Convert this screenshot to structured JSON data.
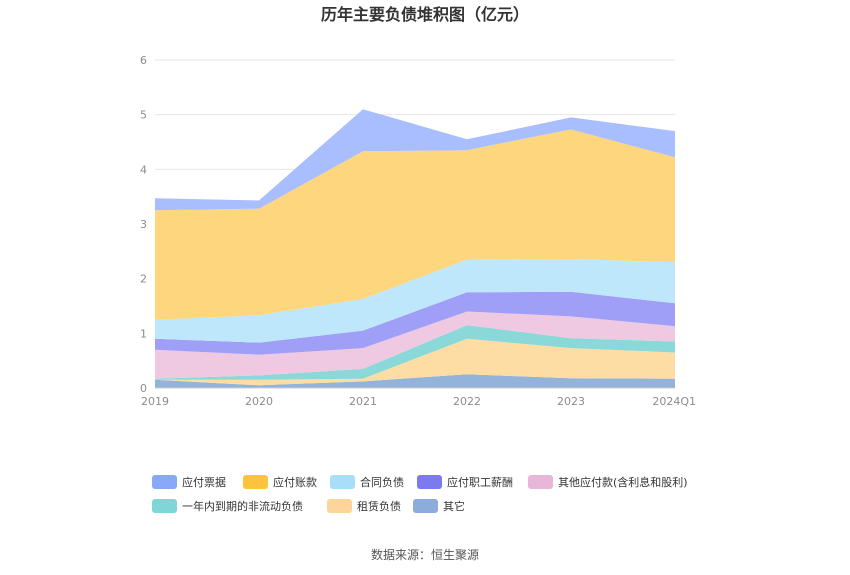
{
  "chart_data": {
    "type": "area",
    "stacked": true,
    "title": "历年主要负债堆积图（亿元）",
    "categories": [
      "2019",
      "2020",
      "2021",
      "2022",
      "2023",
      "2024Q1"
    ],
    "ylim": [
      0,
      6
    ],
    "yticks": [
      "0",
      "1",
      "2",
      "3",
      "4",
      "5",
      "6"
    ],
    "grid": true,
    "legend_position": "bottom",
    "series": [
      {
        "name": "其它",
        "color": "#93b3db",
        "values": [
          0.15,
          0.05,
          0.12,
          0.25,
          0.18,
          0.17
        ]
      },
      {
        "name": "租赁负债",
        "color": "#fddda4",
        "values": [
          0.0,
          0.1,
          0.05,
          0.65,
          0.55,
          0.48
        ]
      },
      {
        "name": "一年内到期的非流动负债",
        "color": "#8ad8d8",
        "values": [
          0.02,
          0.08,
          0.18,
          0.25,
          0.18,
          0.2
        ]
      },
      {
        "name": "其他应付款(含利息和股利)",
        "color": "#efc8e2",
        "values": [
          0.53,
          0.38,
          0.38,
          0.25,
          0.4,
          0.28
        ]
      },
      {
        "name": "应付职工薪酬",
        "color": "#9f9ff7",
        "values": [
          0.2,
          0.22,
          0.32,
          0.35,
          0.45,
          0.42
        ]
      },
      {
        "name": "合同负债",
        "color": "#bee7fb",
        "values": [
          0.35,
          0.5,
          0.58,
          0.6,
          0.6,
          0.75
        ]
      },
      {
        "name": "应付账款",
        "color": "#fed67e",
        "values": [
          2.0,
          1.95,
          2.7,
          2.0,
          2.37,
          1.92
        ]
      },
      {
        "name": "应付票据",
        "color": "#a9beff",
        "values": [
          0.22,
          0.15,
          0.77,
          0.2,
          0.22,
          0.48
        ]
      }
    ],
    "legend": [
      {
        "name": "应付票据",
        "color": "#8aa8f8"
      },
      {
        "name": "应付账款",
        "color": "#fbc43c"
      },
      {
        "name": "合同负债",
        "color": "#a7dffa"
      },
      {
        "name": "应付职工薪酬",
        "color": "#7b7bef"
      },
      {
        "name": "其他应付款(含利息和股利)",
        "color": "#e8b6d8"
      },
      {
        "name": "一年内到期的非流动负债",
        "color": "#7fd6d6"
      },
      {
        "name": "租赁负债",
        "color": "#fdd59a"
      },
      {
        "name": "其它",
        "color": "#8caddc"
      }
    ]
  },
  "source": "数据来源：恒生聚源"
}
